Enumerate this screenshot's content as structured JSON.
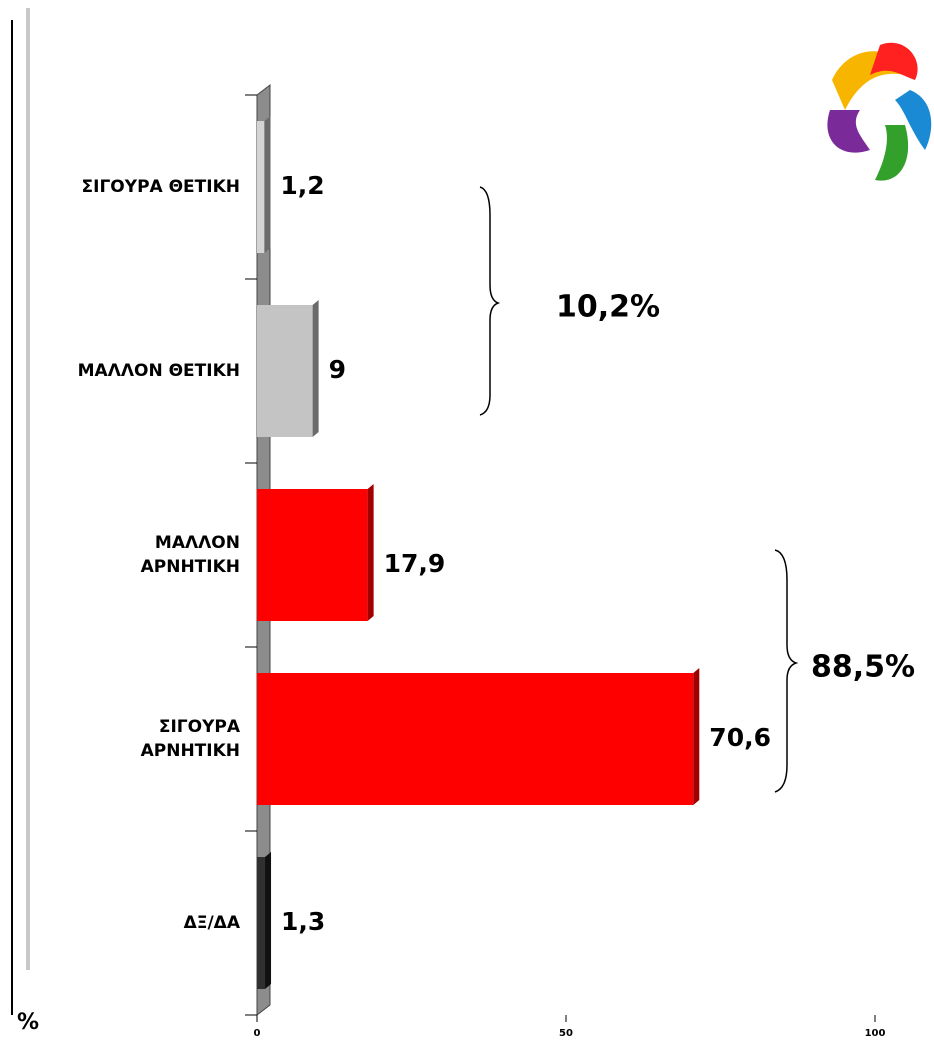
{
  "chart_data": {
    "type": "barh",
    "categories": [
      "ΣΙΓΟΥΡΑ ΘΕΤΙΚΗ",
      "ΜΑΛΛΟΝ ΘΕΤΙΚΗ",
      "ΜΑΛΛΟΝ\nΑΡΝΗΤΙΚΗ",
      "ΣΙΓΟΥΡΑ\nΑΡΝΗΤΙΚΗ",
      "ΔΞ/ΔΑ"
    ],
    "values": [
      1.2,
      9,
      17.9,
      70.6,
      1.3
    ],
    "value_labels": [
      "1,2",
      "9",
      "17,9",
      "70,6",
      "1,3"
    ],
    "colors": [
      "#d4d4d4",
      "#c4c4c4",
      "#ff0000",
      "#ff0000",
      "#303030"
    ],
    "xlim": [
      0,
      100
    ],
    "xticks": [
      0,
      50,
      100
    ],
    "x_label": "%",
    "annotations": [
      "10,2%",
      "88,5%"
    ]
  }
}
